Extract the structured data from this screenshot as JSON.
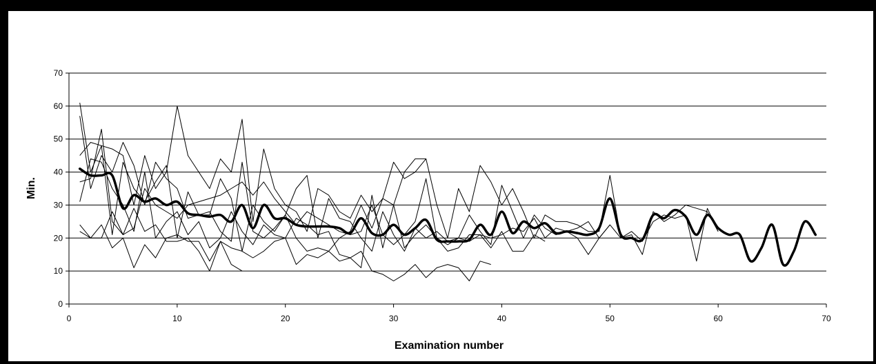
{
  "chart_data": {
    "type": "line",
    "title": "",
    "xlabel": "Examination number",
    "ylabel": "Min.",
    "xlim": [
      0,
      70
    ],
    "ylim": [
      0,
      70
    ],
    "xticks": [
      0,
      10,
      20,
      30,
      40,
      50,
      60,
      70
    ],
    "yticks": [
      0,
      10,
      20,
      30,
      40,
      50,
      60,
      70
    ],
    "grid": "horizontal",
    "legend": "none",
    "series": [
      {
        "style": "thick-smooth",
        "x": [
          1,
          2,
          3,
          4,
          5,
          6,
          7,
          8,
          9,
          10,
          11,
          12,
          13,
          14,
          15,
          16,
          17,
          18,
          19,
          20,
          21,
          22,
          23,
          24,
          25,
          26,
          27,
          28,
          29,
          30,
          31,
          32,
          33,
          34,
          35,
          36,
          37,
          38,
          39,
          40,
          41,
          42,
          43,
          44,
          45,
          46,
          47,
          48,
          49,
          50,
          51,
          52,
          53,
          54,
          55,
          56,
          57,
          58,
          59,
          60,
          61,
          62,
          63,
          64,
          65,
          66,
          67,
          68,
          69
        ],
        "y": [
          41,
          39,
          39,
          39,
          29,
          33,
          31,
          32,
          30,
          31,
          27.5,
          27,
          26.5,
          27,
          25,
          30,
          23,
          30,
          26,
          26,
          24,
          23.5,
          23.5,
          23.5,
          23,
          21.5,
          26,
          21.5,
          21,
          24,
          21,
          23,
          25.5,
          19.5,
          19,
          19,
          19.5,
          24,
          21,
          28,
          21.5,
          25,
          23,
          24.5,
          21.5,
          22,
          21.5,
          21,
          23,
          32,
          21,
          20,
          19.5,
          27,
          26,
          28.5,
          26.5,
          21,
          27,
          23,
          21,
          21,
          13,
          17,
          24,
          12,
          16,
          25,
          21
        ]
      },
      {
        "style": "thin",
        "x": [
          1,
          2,
          3,
          4,
          5,
          6,
          7,
          8,
          9,
          10,
          11,
          12,
          13,
          14,
          15,
          16,
          17,
          18,
          19,
          20,
          21,
          22,
          23,
          24,
          25,
          26,
          27,
          28,
          29,
          30,
          31,
          32,
          33
        ],
        "y": [
          61,
          40,
          48,
          47,
          45,
          30,
          45,
          35,
          40,
          60,
          45,
          40,
          35,
          44,
          40,
          56,
          25,
          47,
          35,
          30,
          28,
          22,
          35,
          33,
          28,
          26,
          33,
          28,
          32,
          30,
          40,
          44,
          44
        ]
      },
      {
        "style": "thin",
        "x": [
          1,
          2,
          3,
          4,
          5,
          6,
          7,
          8,
          9,
          10,
          11,
          12,
          13,
          14,
          15,
          16,
          17,
          18,
          19,
          20,
          21,
          22,
          23,
          24,
          25,
          26,
          27,
          28,
          29,
          30,
          31,
          32,
          33,
          34,
          35,
          36,
          37,
          38,
          39,
          40,
          41,
          42,
          43,
          44,
          45,
          46,
          47,
          48,
          49,
          50,
          51,
          52,
          53,
          54,
          55,
          56,
          57,
          58,
          59,
          60
        ],
        "y": [
          57,
          35,
          45,
          40,
          49,
          42,
          30,
          43,
          38,
          35,
          26,
          27,
          28,
          22,
          19,
          43,
          22,
          20,
          23,
          27,
          20,
          16,
          17,
          16,
          20,
          22,
          30,
          23,
          32,
          43,
          38,
          40,
          44,
          30,
          20,
          35,
          28,
          42,
          37,
          30,
          35,
          28,
          20,
          27,
          25,
          25,
          24,
          22,
          22,
          39,
          20,
          21,
          15,
          28,
          25,
          27,
          30,
          29,
          28,
          22
        ]
      },
      {
        "style": "thin",
        "x": [
          1,
          2,
          3,
          4,
          5,
          6,
          7,
          8,
          9,
          10,
          11,
          12,
          13,
          14,
          15,
          16,
          17,
          18,
          19,
          20,
          21,
          22,
          23,
          24,
          25,
          26,
          27,
          28,
          29,
          30,
          31,
          32,
          33,
          34,
          35,
          36,
          37,
          38,
          39,
          40,
          41,
          42,
          43,
          44,
          45,
          46,
          47,
          48,
          49,
          50,
          51,
          52,
          53,
          54,
          55,
          56,
          57,
          58,
          59,
          60
        ],
        "y": [
          37,
          38,
          53,
          25,
          21,
          23,
          35,
          30,
          28,
          26,
          30,
          31,
          32,
          33,
          35,
          37,
          33,
          37,
          32,
          28,
          24,
          28,
          26,
          24,
          22,
          21,
          22,
          30,
          21,
          18,
          21,
          25,
          38,
          20,
          18,
          20,
          27,
          22,
          18,
          36,
          28,
          20,
          27,
          23,
          21,
          22,
          23,
          25,
          20,
          24,
          20,
          22,
          19,
          25,
          27,
          26,
          27,
          13,
          29,
          22
        ]
      },
      {
        "style": "thin",
        "x": [
          1,
          2,
          3,
          4,
          5,
          6,
          7,
          8,
          9,
          10,
          11,
          12,
          13,
          14,
          15,
          16,
          17,
          18,
          19,
          20,
          21,
          22,
          23,
          24,
          25,
          26,
          27,
          28,
          29,
          30,
          31,
          32,
          33,
          34,
          35,
          36,
          37,
          38,
          39,
          40,
          41,
          42,
          43,
          44
        ],
        "y": [
          31,
          44,
          43,
          35,
          30,
          22,
          40,
          20,
          25,
          28,
          21,
          25,
          17,
          20,
          28,
          22,
          18,
          24,
          21,
          20,
          12,
          15,
          14,
          16,
          13,
          14,
          11,
          33,
          17,
          30,
          17,
          21,
          24,
          20,
          16,
          17,
          21,
          21,
          17,
          22,
          16,
          16,
          21,
          19
        ]
      },
      {
        "style": "thin",
        "x": [
          1,
          2,
          3,
          4,
          5,
          6,
          7,
          8,
          9,
          10,
          11,
          12,
          13,
          14,
          15,
          16,
          17,
          18,
          19,
          20,
          21,
          22,
          23,
          24,
          25,
          26,
          27,
          28,
          29,
          30,
          31,
          32,
          33,
          34,
          35,
          36,
          37,
          38,
          39
        ],
        "y": [
          22,
          20,
          24,
          17,
          20,
          11,
          18,
          14,
          20,
          21,
          19,
          19,
          13,
          19,
          17,
          16,
          14,
          16,
          19,
          20,
          26,
          24,
          21,
          22,
          15,
          14,
          16,
          10,
          9,
          7,
          9,
          12,
          8,
          11,
          12,
          11,
          7,
          13,
          12
        ]
      },
      {
        "style": "thin",
        "x": [
          1,
          2,
          3,
          4,
          5,
          6,
          7,
          8,
          9,
          10,
          11,
          12,
          13,
          14,
          15,
          16
        ],
        "y": [
          24,
          20,
          20,
          28,
          21,
          29,
          22,
          24,
          19,
          19,
          20,
          16,
          10,
          19,
          12,
          10
        ]
      },
      {
        "style": "thin",
        "x": [
          1,
          2,
          3,
          4,
          5,
          6,
          7,
          8,
          9,
          10,
          11,
          12,
          13,
          14,
          15,
          16,
          17,
          18,
          19,
          20,
          21,
          22,
          23,
          24,
          25,
          26,
          27,
          28,
          29,
          30,
          31,
          32,
          33,
          34,
          35,
          36,
          37,
          38,
          39,
          40,
          41,
          42,
          43,
          44,
          45,
          46,
          47,
          48,
          49,
          50
        ],
        "y": [
          45,
          49,
          48,
          21,
          43,
          35,
          31,
          37,
          42,
          20,
          34,
          27,
          27,
          38,
          32,
          16,
          30,
          25,
          22,
          27,
          35,
          39,
          20,
          32,
          26,
          25,
          20,
          16,
          28,
          21,
          16,
          23,
          20,
          22,
          19,
          20,
          19,
          21,
          20,
          21,
          23,
          22,
          26,
          20,
          23,
          22,
          20,
          15,
          20,
          24
        ]
      }
    ]
  }
}
